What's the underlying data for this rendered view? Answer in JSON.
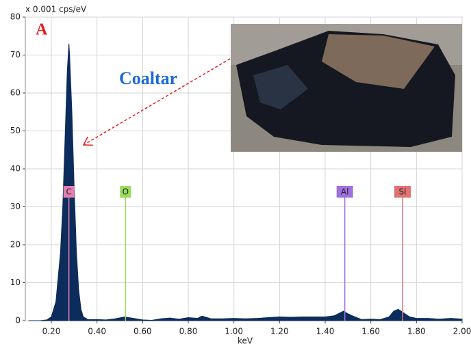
{
  "chart_data": {
    "type": "area",
    "y_label": "x 0.001 cps/eV",
    "x_label": "keV",
    "panel_label": "A",
    "annotation": "Coaltar",
    "color": "#0c2c5c",
    "grid": true,
    "xlim": [
      0.086,
      2.0
    ],
    "ylim": [
      0,
      80
    ],
    "xticks": [
      {
        "value": 0.2,
        "label": "0.20"
      },
      {
        "value": 0.4,
        "label": "0.40"
      },
      {
        "value": 0.6,
        "label": "0.60"
      },
      {
        "value": 0.8,
        "label": "0.80"
      },
      {
        "value": 1.0,
        "label": "1.00"
      },
      {
        "value": 1.2,
        "label": "1.20"
      },
      {
        "value": 1.4,
        "label": "1.40"
      },
      {
        "value": 1.6,
        "label": "1.60"
      },
      {
        "value": 1.8,
        "label": "1.80"
      },
      {
        "value": 2.0,
        "label": "2.00"
      }
    ],
    "yticks": [
      0,
      10,
      20,
      30,
      40,
      50,
      60,
      70,
      80
    ],
    "x": [
      0.1,
      0.15,
      0.18,
      0.2,
      0.22,
      0.24,
      0.25,
      0.26,
      0.27,
      0.277,
      0.28,
      0.29,
      0.3,
      0.31,
      0.32,
      0.33,
      0.34,
      0.36,
      0.4,
      0.44,
      0.48,
      0.52,
      0.56,
      0.6,
      0.64,
      0.68,
      0.72,
      0.76,
      0.8,
      0.84,
      0.86,
      0.9,
      0.95,
      1.0,
      1.05,
      1.1,
      1.15,
      1.2,
      1.25,
      1.3,
      1.35,
      1.4,
      1.44,
      1.48,
      1.5,
      1.53,
      1.56,
      1.6,
      1.64,
      1.68,
      1.7,
      1.72,
      1.74,
      1.77,
      1.8,
      1.85,
      1.9,
      1.95,
      2.0
    ],
    "values": [
      0,
      0,
      0.2,
      1,
      5,
      18,
      30,
      48,
      66,
      73,
      70,
      55,
      35,
      18,
      8,
      3,
      1,
      0.3,
      0.3,
      0.2,
      0.5,
      1,
      0.6,
      0.2,
      0.1,
      0.5,
      0.7,
      0.4,
      0.8,
      0.6,
      1.2,
      0.5,
      0.5,
      0.6,
      0.5,
      0.6,
      0.8,
      1,
      0.9,
      1,
      1,
      1,
      1.3,
      2.5,
      1.8,
      1,
      0.3,
      0.4,
      0.3,
      1,
      2.5,
      3,
      2.2,
      1,
      0.6,
      0.6,
      0.4,
      0.6,
      0.4
    ],
    "element_lines": [
      {
        "label": "C",
        "x": 0.277,
        "color": "#e27fb2"
      },
      {
        "label": "O",
        "x": 0.525,
        "color": "#98dc5c"
      },
      {
        "label": "Al",
        "x": 1.486,
        "color": "#a070e0"
      },
      {
        "label": "Si",
        "x": 1.739,
        "color": "#e07272"
      }
    ]
  }
}
